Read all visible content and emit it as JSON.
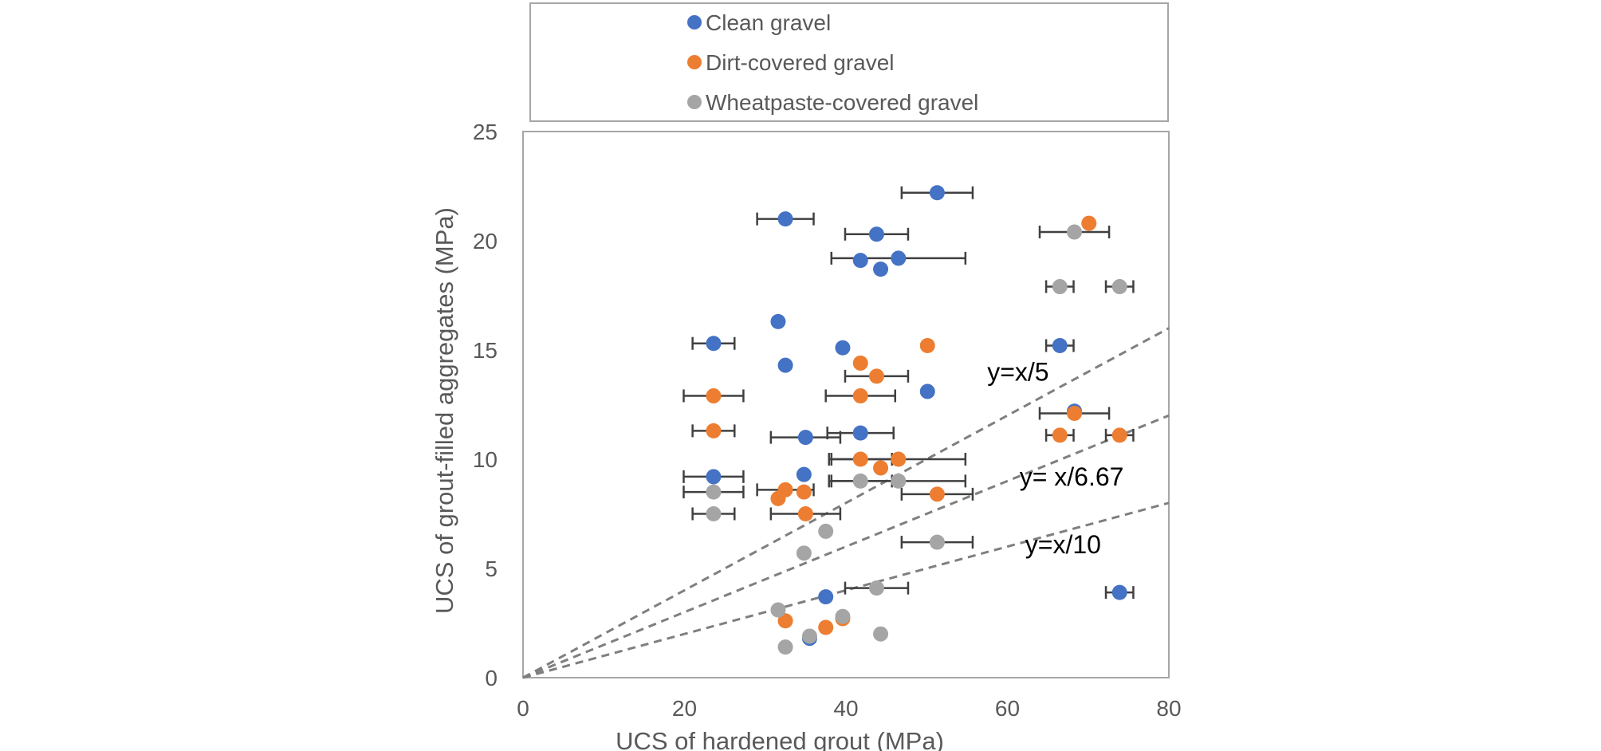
{
  "chart_data": {
    "type": "scatter",
    "title": "",
    "xlabel": "UCS of hardened grout (MPa)",
    "ylabel": "UCS of grout-filled aggregates (MPa)",
    "xlim": [
      0,
      80
    ],
    "ylim": [
      0,
      25
    ],
    "x_ticks": [
      "0",
      "20",
      "40",
      "60",
      "80"
    ],
    "y_ticks": [
      "0",
      "5",
      "10",
      "15",
      "20",
      "25"
    ],
    "grid": false,
    "legend_position": "top",
    "colors": {
      "clean": "#4472C4",
      "dirt": "#ED7D31",
      "wheat": "#A5A5A5",
      "error_bar": "#404040",
      "trend": "#7F7F7F",
      "frame": "#A6A6A6"
    },
    "series": [
      {
        "key": "clean",
        "name": "Clean gravel",
        "points": [
          {
            "x": 51.3,
            "y": 22.2,
            "xerr": 4.4
          },
          {
            "x": 32.5,
            "y": 21.0,
            "xerr": 3.5
          },
          {
            "x": 43.8,
            "y": 20.3,
            "xerr": 3.9
          },
          {
            "x": 41.8,
            "y": 19.1,
            "xerr": 0
          },
          {
            "x": 46.5,
            "y": 19.2,
            "xerr": 8.3
          },
          {
            "x": 44.3,
            "y": 18.7,
            "xerr": 0
          },
          {
            "x": 31.6,
            "y": 16.3,
            "xerr": 0
          },
          {
            "x": 23.6,
            "y": 15.3,
            "xerr": 2.6
          },
          {
            "x": 39.6,
            "y": 15.1,
            "xerr": 0
          },
          {
            "x": 66.5,
            "y": 15.2,
            "xerr": 1.7
          },
          {
            "x": 32.5,
            "y": 14.3,
            "xerr": 0
          },
          {
            "x": 50.1,
            "y": 13.1,
            "xerr": 0
          },
          {
            "x": 68.3,
            "y": 12.2,
            "xerr": 0
          },
          {
            "x": 41.8,
            "y": 11.2,
            "xerr": 4.1
          },
          {
            "x": 35.0,
            "y": 11.0,
            "xerr": 4.3
          },
          {
            "x": 34.8,
            "y": 9.3,
            "xerr": 0
          },
          {
            "x": 23.6,
            "y": 9.2,
            "xerr": 3.7
          },
          {
            "x": 37.5,
            "y": 3.7,
            "xerr": 0
          },
          {
            "x": 73.9,
            "y": 3.9,
            "xerr": 1.7
          },
          {
            "x": 35.5,
            "y": 1.8,
            "xerr": 0
          }
        ]
      },
      {
        "key": "dirt",
        "name": "Dirt-covered gravel",
        "points": [
          {
            "x": 70.1,
            "y": 20.8,
            "xerr": 0
          },
          {
            "x": 50.1,
            "y": 15.2,
            "xerr": 0
          },
          {
            "x": 41.8,
            "y": 14.4,
            "xerr": 0
          },
          {
            "x": 43.8,
            "y": 13.8,
            "xerr": 3.9
          },
          {
            "x": 23.6,
            "y": 12.9,
            "xerr": 3.7
          },
          {
            "x": 41.8,
            "y": 12.9,
            "xerr": 4.3
          },
          {
            "x": 68.3,
            "y": 12.1,
            "xerr": 4.3
          },
          {
            "x": 23.6,
            "y": 11.3,
            "xerr": 2.6
          },
          {
            "x": 66.5,
            "y": 11.1,
            "xerr": 1.7
          },
          {
            "x": 73.9,
            "y": 11.1,
            "xerr": 1.7
          },
          {
            "x": 41.8,
            "y": 10.0,
            "xerr": 3.9
          },
          {
            "x": 46.5,
            "y": 10.0,
            "xerr": 8.3
          },
          {
            "x": 44.3,
            "y": 9.6,
            "xerr": 0
          },
          {
            "x": 32.5,
            "y": 8.6,
            "xerr": 3.5
          },
          {
            "x": 34.8,
            "y": 8.5,
            "xerr": 0
          },
          {
            "x": 31.6,
            "y": 8.2,
            "xerr": 0
          },
          {
            "x": 51.3,
            "y": 8.4,
            "xerr": 4.4
          },
          {
            "x": 35.0,
            "y": 7.5,
            "xerr": 4.3
          },
          {
            "x": 32.5,
            "y": 2.6,
            "xerr": 0
          },
          {
            "x": 39.6,
            "y": 2.7,
            "xerr": 0
          },
          {
            "x": 37.5,
            "y": 2.3,
            "xerr": 0
          }
        ]
      },
      {
        "key": "wheat",
        "name": "Wheatpaste-covered gravel",
        "points": [
          {
            "x": 68.3,
            "y": 20.4,
            "xerr": 4.3
          },
          {
            "x": 66.5,
            "y": 17.9,
            "xerr": 1.7
          },
          {
            "x": 73.9,
            "y": 17.9,
            "xerr": 1.7
          },
          {
            "x": 41.8,
            "y": 9.0,
            "xerr": 3.9
          },
          {
            "x": 46.5,
            "y": 9.0,
            "xerr": 8.3
          },
          {
            "x": 23.6,
            "y": 8.5,
            "xerr": 3.7
          },
          {
            "x": 23.6,
            "y": 7.5,
            "xerr": 2.6
          },
          {
            "x": 37.5,
            "y": 6.7,
            "xerr": 0
          },
          {
            "x": 51.3,
            "y": 6.2,
            "xerr": 4.4
          },
          {
            "x": 34.8,
            "y": 5.7,
            "xerr": 0
          },
          {
            "x": 43.8,
            "y": 4.1,
            "xerr": 3.9
          },
          {
            "x": 31.6,
            "y": 3.1,
            "xerr": 0
          },
          {
            "x": 39.6,
            "y": 2.8,
            "xerr": 0
          },
          {
            "x": 44.3,
            "y": 2.0,
            "xerr": 0
          },
          {
            "x": 35.5,
            "y": 1.9,
            "xerr": 0
          },
          {
            "x": 32.5,
            "y": 1.4,
            "xerr": 0
          }
        ]
      }
    ],
    "trendlines": [
      {
        "label": "y=x/5",
        "slope": 0.2,
        "label_at": {
          "x": 57.5,
          "y": 13.6
        }
      },
      {
        "label": "y= x/6.67",
        "slope": 0.15,
        "label_at": {
          "x": 61.5,
          "y": 8.8
        }
      },
      {
        "label": "y=x/10",
        "slope": 0.1,
        "label_at": {
          "x": 62.2,
          "y": 5.7
        }
      }
    ]
  }
}
